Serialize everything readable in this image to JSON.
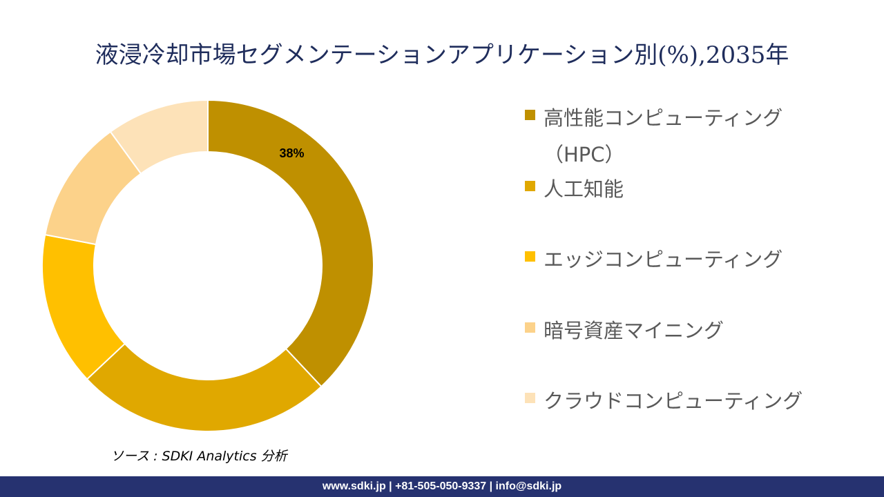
{
  "title": "液浸冷却市場セグメンテーションアプリケーション別(%),2035年",
  "source": "ソース : SDKI Analytics 分析",
  "footer": "www.sdki.jp | +81-505-050-9337 | info@sdki.jp",
  "chart_data": {
    "type": "donut",
    "categories": [
      "高性能コンピューティング（HPC）",
      "人工知能",
      "エッジコンピューティング",
      "暗号資産マイニング",
      "クラウドコンピューティング"
    ],
    "values": [
      38,
      25,
      15,
      12,
      10
    ],
    "value_labels": [
      "38%",
      null,
      null,
      null,
      null
    ],
    "colors": [
      "#bf9000",
      "#e0a800",
      "#ffc000",
      "#fcd28a",
      "#fde2b8"
    ]
  }
}
